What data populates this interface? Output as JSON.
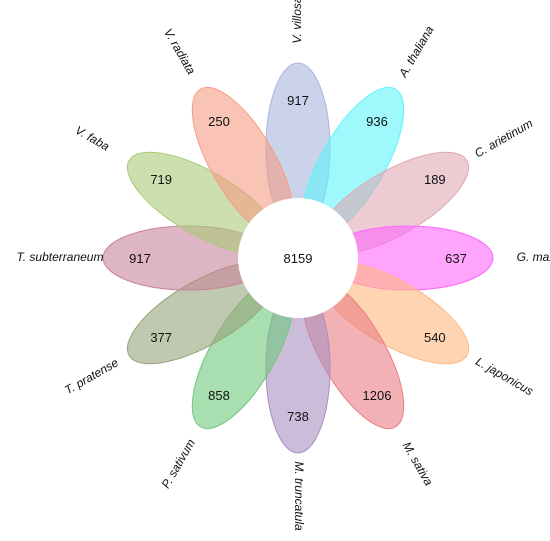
{
  "diagram": {
    "type": "flower-venn",
    "core": {
      "count": "8159",
      "fill": "#ffffff"
    },
    "petals": [
      {
        "species": "V. villosa",
        "count": "917",
        "color": "#a9b6dd"
      },
      {
        "species": "A. thaliana",
        "count": "936",
        "color": "#5ff3f8"
      },
      {
        "species": "C. arietinum",
        "count": "189",
        "color": "#e0a8b6"
      },
      {
        "species": "G. max",
        "count": "637",
        "color": "#fe68fc"
      },
      {
        "species": "L. japonicus",
        "count": "540",
        "color": "#ffb77f"
      },
      {
        "species": "M. sativa",
        "count": "1206",
        "color": "#ea7d84"
      },
      {
        "species": "M. truncatula",
        "count": "738",
        "color": "#a98fc0"
      },
      {
        "species": "P. sativum",
        "count": "858",
        "color": "#70c87c"
      },
      {
        "species": "T. pratense",
        "count": "377",
        "color": "#98a37b"
      },
      {
        "species": "T. subterraneum",
        "count": "917",
        "color": "#c8849a"
      },
      {
        "species": "V. faba",
        "count": "719",
        "color": "#a8cb78"
      },
      {
        "species": "V. radiata",
        "count": "250",
        "color": "#f59d84"
      }
    ]
  }
}
